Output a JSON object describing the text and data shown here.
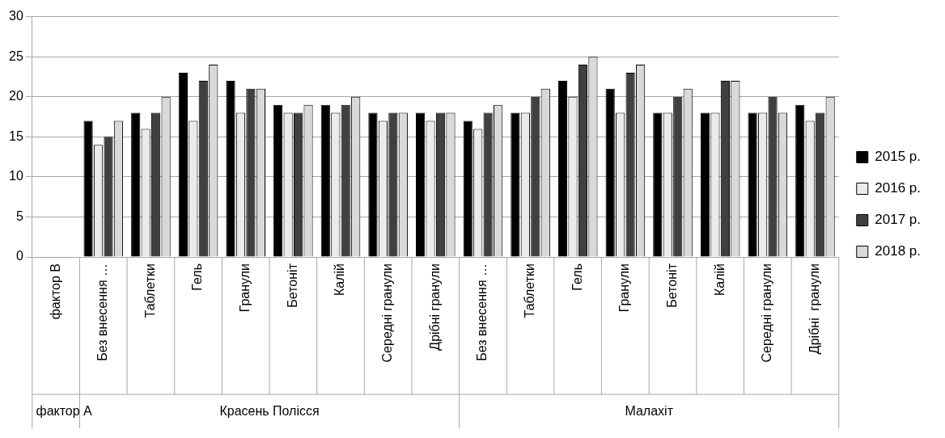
{
  "chart_data": {
    "type": "bar",
    "categories": [
      "фактор B",
      "Без внесення …",
      "Таблетки",
      "Гель",
      "Гранули",
      "Бетоніт",
      "Калій",
      "Середні гранули",
      "Дрібні гранули",
      "Без внесення …",
      "Таблетки",
      "Гель",
      "Гранули",
      "Бетоніт",
      "Калій",
      "Середні гранули",
      "Дрібні  гранули"
    ],
    "series": [
      {
        "name": "2015 р.",
        "color": "#000000",
        "values": [
          null,
          17,
          18,
          23,
          22,
          19,
          19,
          18,
          18,
          17,
          18,
          22,
          21,
          18,
          18,
          18,
          19
        ]
      },
      {
        "name": "2016 р.",
        "color": "#ebebeb",
        "values": [
          null,
          14,
          16,
          17,
          18,
          18,
          18,
          17,
          17,
          16,
          18,
          20,
          18,
          18,
          18,
          18,
          17
        ]
      },
      {
        "name": "2017 р.",
        "color": "#404040",
        "values": [
          null,
          15,
          18,
          22,
          21,
          18,
          19,
          18,
          18,
          18,
          20,
          24,
          23,
          20,
          22,
          20,
          18
        ]
      },
      {
        "name": "2018 р.",
        "color": "#d9d9d9",
        "values": [
          null,
          17,
          20,
          24,
          21,
          19,
          20,
          18,
          18,
          19,
          21,
          25,
          24,
          21,
          22,
          18,
          20
        ]
      }
    ],
    "ylim": [
      0,
      30
    ],
    "yticks": [
      0,
      5,
      10,
      15,
      20,
      25,
      30
    ],
    "grid": "y",
    "legend": "right",
    "annotations": [
      "фактор А",
      "Красень Полісся",
      "Малахіт"
    ]
  }
}
